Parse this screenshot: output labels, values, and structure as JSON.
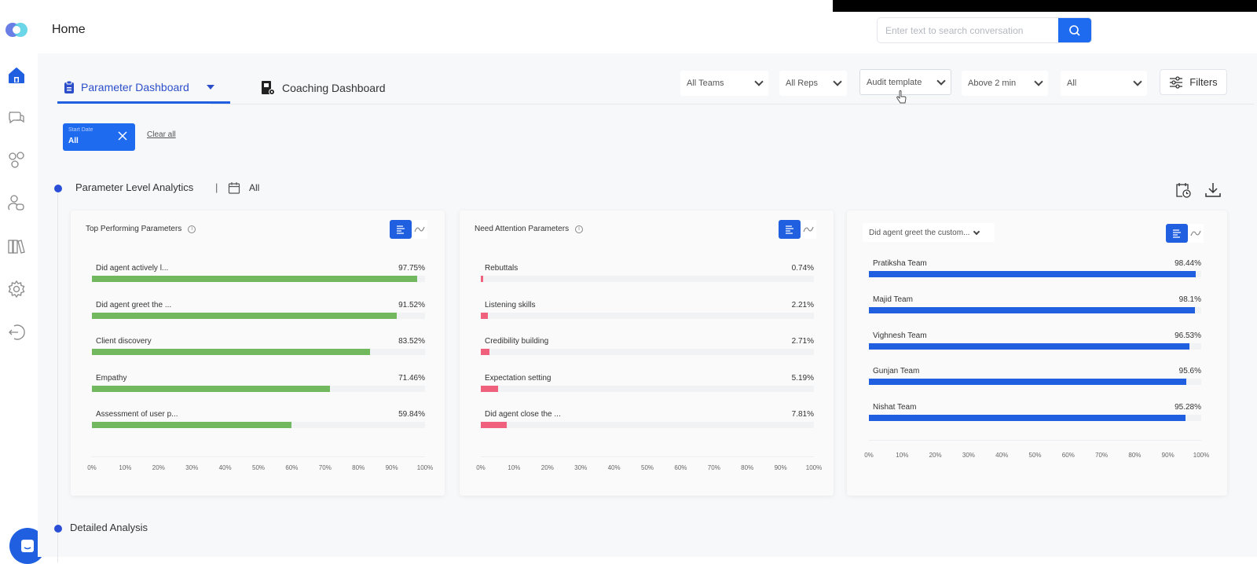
{
  "header": {
    "title": "Home",
    "search": {
      "placeholder": "Enter text to search conversation",
      "value": ""
    }
  },
  "sidebar": {
    "items": [
      {
        "name": "home",
        "active": true
      },
      {
        "name": "conversations",
        "active": false
      },
      {
        "name": "groups",
        "active": false
      },
      {
        "name": "users",
        "active": false
      },
      {
        "name": "library",
        "active": false
      },
      {
        "name": "settings",
        "active": false
      },
      {
        "name": "logout",
        "active": false
      }
    ]
  },
  "tabs": [
    {
      "label": "Parameter Dashboard",
      "active": true
    },
    {
      "label": "Coaching Dashboard",
      "active": false
    }
  ],
  "filters": {
    "teams": "All Teams",
    "reps": "All Reps",
    "template": "Audit template",
    "duration": "Above 2 min",
    "other": "All",
    "filters_label": "Filters"
  },
  "applied_filters": {
    "chip_label": "Start Date",
    "chip_value": "All",
    "clear_all": "Clear all"
  },
  "sections": {
    "parameter_level": {
      "title": "Parameter Level Analytics",
      "separator": "|",
      "date_value": "All"
    },
    "detailed": {
      "title": "Detailed Analysis"
    }
  },
  "colors": {
    "accent": "#1f5fe0",
    "good": "#72b85e",
    "bad": "#f0617d",
    "team": "#1f5fe0"
  },
  "chart_data": [
    {
      "type": "bar",
      "title": "Top Performing Parameters",
      "orientation": "horizontal",
      "categories": [
        "Did agent actively l...",
        "Did agent greet the ...",
        "Client discovery",
        "Empathy",
        "Assessment of user p..."
      ],
      "values": [
        97.75,
        91.52,
        83.52,
        71.46,
        59.84
      ],
      "value_labels": [
        "97.75%",
        "91.52%",
        "83.52%",
        "71.46%",
        "59.84%"
      ],
      "xlim": [
        0,
        100
      ],
      "xticks": [
        "0%",
        "10%",
        "20%",
        "30%",
        "40%",
        "50%",
        "60%",
        "70%",
        "80%",
        "90%",
        "100%"
      ],
      "color": "#72b85e"
    },
    {
      "type": "bar",
      "title": "Need Attention Parameters",
      "orientation": "horizontal",
      "categories": [
        "Rebuttals",
        "Listening skills",
        "Credibility building",
        "Expectation setting",
        "Did agent close the ..."
      ],
      "values": [
        0.74,
        2.21,
        2.71,
        5.19,
        7.81
      ],
      "value_labels": [
        "0.74%",
        "2.21%",
        "2.71%",
        "5.19%",
        "7.81%"
      ],
      "xlim": [
        0,
        100
      ],
      "xticks": [
        "0%",
        "10%",
        "20%",
        "30%",
        "40%",
        "50%",
        "60%",
        "70%",
        "80%",
        "90%",
        "100%"
      ],
      "color": "#f0617d"
    },
    {
      "type": "bar",
      "title": "Did agent greet the custom...",
      "orientation": "horizontal",
      "categories": [
        "Pratiksha Team",
        "Majid Team",
        "Vighnesh Team",
        "Gunjan Team",
        "Nishat Team"
      ],
      "values": [
        98.44,
        98.1,
        96.53,
        95.6,
        95.28
      ],
      "value_labels": [
        "98.44%",
        "98.1%",
        "96.53%",
        "95.6%",
        "95.28%"
      ],
      "xlim": [
        0,
        100
      ],
      "xticks": [
        "0%",
        "10%",
        "20%",
        "30%",
        "40%",
        "50%",
        "60%",
        "70%",
        "80%",
        "90%",
        "100%"
      ],
      "color": "#1f5fe0"
    }
  ]
}
